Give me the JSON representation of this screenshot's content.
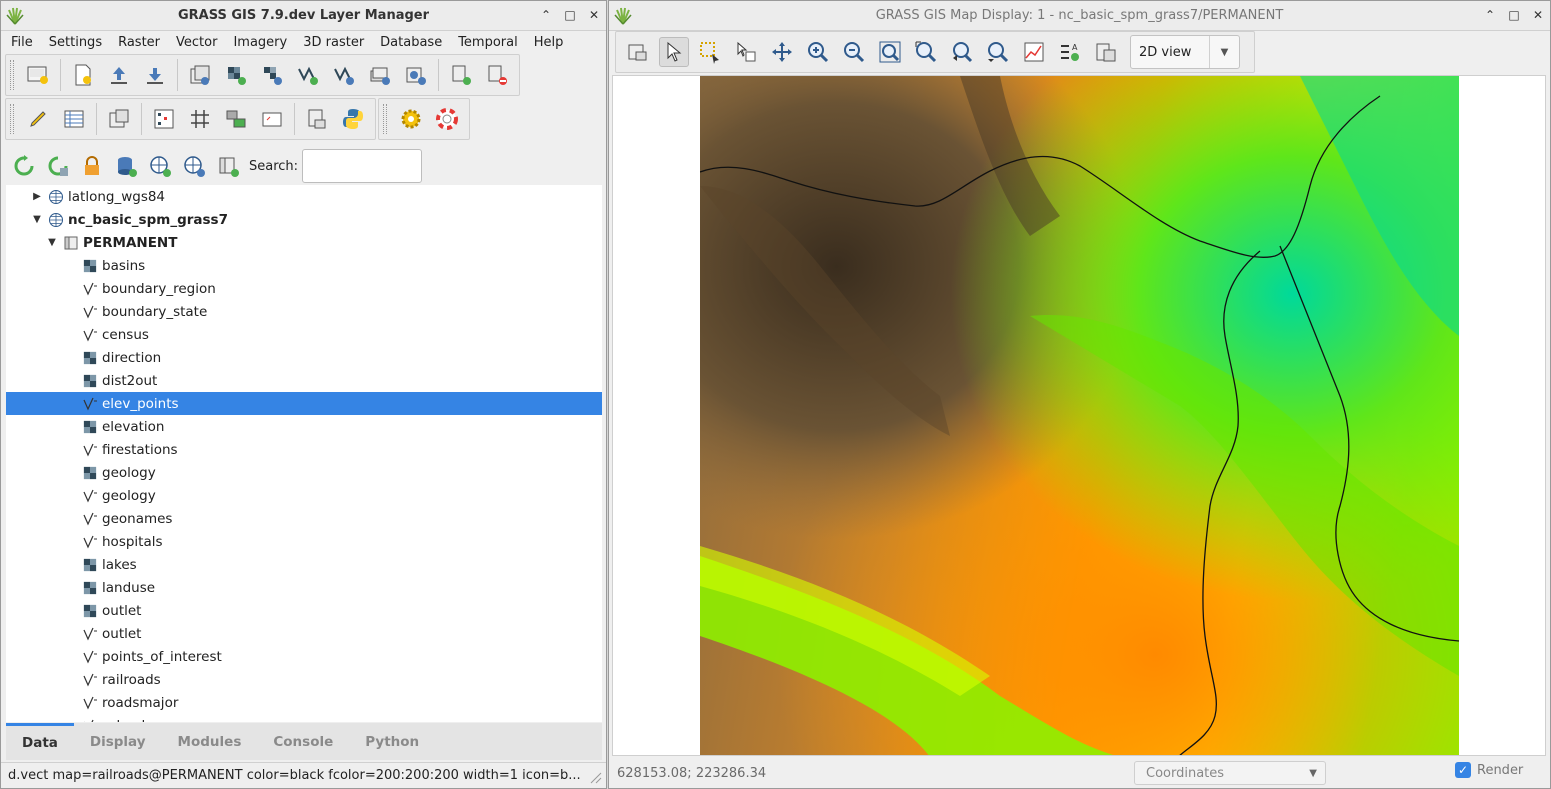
{
  "layer_manager": {
    "title": "GRASS GIS 7.9.dev Layer Manager",
    "menu": [
      "File",
      "Settings",
      "Raster",
      "Vector",
      "Imagery",
      "3D raster",
      "Database",
      "Temporal",
      "Help"
    ],
    "search_label": "Search:",
    "search_value": "",
    "tree": [
      {
        "label": "latlong_wgs84",
        "level": 0,
        "type": "location",
        "expander": "collapsed",
        "bold": false
      },
      {
        "label": "nc_basic_spm_grass7",
        "level": 0,
        "type": "location",
        "expander": "expanded",
        "bold": true
      },
      {
        "label": "PERMANENT",
        "level": 1,
        "type": "mapset",
        "expander": "expanded",
        "bold": true
      },
      {
        "label": "basins",
        "level": 2,
        "type": "raster"
      },
      {
        "label": "boundary_region",
        "level": 2,
        "type": "vector"
      },
      {
        "label": "boundary_state",
        "level": 2,
        "type": "vector"
      },
      {
        "label": "census",
        "level": 2,
        "type": "vector"
      },
      {
        "label": "direction",
        "level": 2,
        "type": "raster"
      },
      {
        "label": "dist2out",
        "level": 2,
        "type": "raster"
      },
      {
        "label": "elev_points",
        "level": 2,
        "type": "vector",
        "selected": true
      },
      {
        "label": "elevation",
        "level": 2,
        "type": "raster"
      },
      {
        "label": "firestations",
        "level": 2,
        "type": "vector"
      },
      {
        "label": "geology",
        "level": 2,
        "type": "raster"
      },
      {
        "label": "geology",
        "level": 2,
        "type": "vector"
      },
      {
        "label": "geonames",
        "level": 2,
        "type": "vector"
      },
      {
        "label": "hospitals",
        "level": 2,
        "type": "vector"
      },
      {
        "label": "lakes",
        "level": 2,
        "type": "raster"
      },
      {
        "label": "landuse",
        "level": 2,
        "type": "raster"
      },
      {
        "label": "outlet",
        "level": 2,
        "type": "raster"
      },
      {
        "label": "outlet",
        "level": 2,
        "type": "vector"
      },
      {
        "label": "points_of_interest",
        "level": 2,
        "type": "vector"
      },
      {
        "label": "railroads",
        "level": 2,
        "type": "vector"
      },
      {
        "label": "roadsmajor",
        "level": 2,
        "type": "vector"
      },
      {
        "label": "schools",
        "level": 2,
        "type": "vector"
      }
    ],
    "tabs": [
      "Data",
      "Display",
      "Modules",
      "Console",
      "Python"
    ],
    "active_tab": "Data",
    "status": "d.vect map=railroads@PERMANENT color=black fcolor=200:200:200 width=1 icon=b..."
  },
  "map_display": {
    "title": "GRASS GIS Map Display: 1 - nc_basic_spm_grass7/PERMANENT",
    "view_mode": "2D view",
    "coordinates": "628153.08; 223286.34",
    "coord_mode": "Coordinates",
    "render_label": "Render",
    "render_checked": true
  },
  "icons": {
    "app": "grass-logo-icon",
    "vector_layer": "vector-layer-icon",
    "raster_layer": "raster-layer-icon",
    "location": "globe-icon",
    "mapset": "mapset-icon"
  },
  "colors": {
    "selection": "#3584e4",
    "elevation_low": "#00d99a",
    "elevation_mid": "#ffff00",
    "elevation_high": "#3a2d1e"
  }
}
